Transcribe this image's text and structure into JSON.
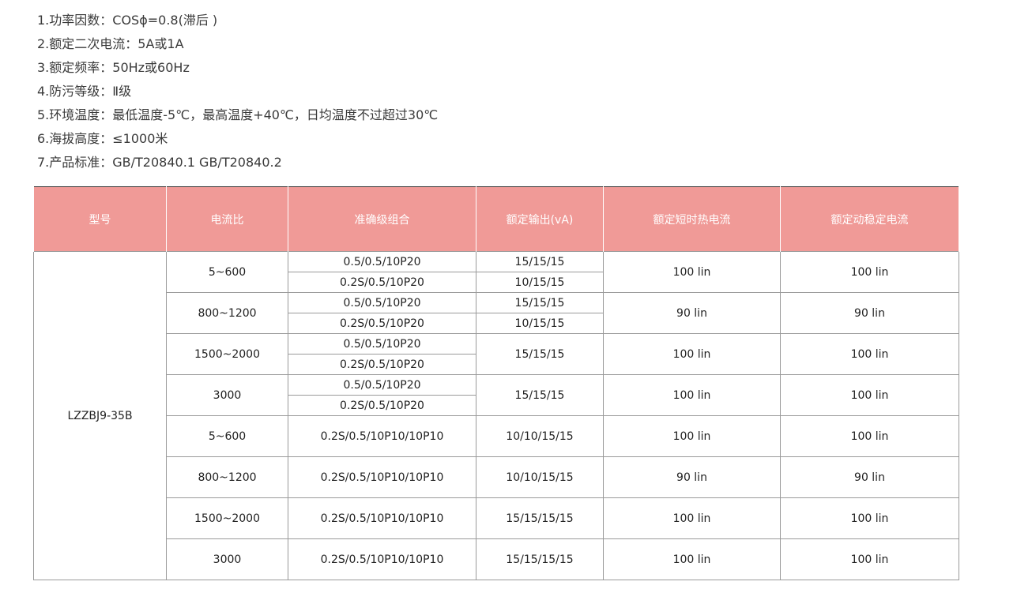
{
  "specs": [
    "1.功率因数：COSϕ=0.8(滞后 )",
    "2.额定二次电流：5A或1A",
    "3.额定频率：50Hz或60Hz",
    "4.防污等级：Ⅱ级",
    "5.环境温度：最低温度-5℃，最高温度+40℃，日均温度不过超过30℃",
    "6.海拔高度：≤1000米",
    "7.产品标准：GB/T20840.1   GB/T20840.2"
  ],
  "table": {
    "header_color": "#f09a97",
    "headers": [
      "型号",
      "电流比",
      "准确级组合",
      "额定输出(vA)",
      "额定短时热电流",
      "额定动稳定电流"
    ],
    "model": "LZZBJ9-35B",
    "groups": [
      {
        "ratio": "5~600",
        "accuracy": [
          "0.5/0.5/10P20",
          "0.2S/0.5/10P20"
        ],
        "output": [
          "15/15/15",
          "10/15/15"
        ],
        "thermal": "100 lin",
        "dynamic": "100 lin"
      },
      {
        "ratio": "800~1200",
        "accuracy": [
          "0.5/0.5/10P20",
          "0.2S/0.5/10P20"
        ],
        "output": [
          "15/15/15",
          "10/15/15"
        ],
        "thermal": "90 lin",
        "dynamic": "90 lin"
      },
      {
        "ratio": "1500~2000",
        "accuracy": [
          "0.5/0.5/10P20",
          "0.2S/0.5/10P20"
        ],
        "output": [
          "15/15/15"
        ],
        "thermal": "100 lin",
        "dynamic": "100 lin"
      },
      {
        "ratio": "3000",
        "accuracy": [
          "0.5/0.5/10P20",
          "0.2S/0.5/10P20"
        ],
        "output": [
          "15/15/15"
        ],
        "thermal": "100 lin",
        "dynamic": "100 lin"
      },
      {
        "ratio": "5~600",
        "accuracy": [
          "0.2S/0.5/10P10/10P10"
        ],
        "output": [
          "10/10/15/15"
        ],
        "thermal": "100 lin",
        "dynamic": "100 lin"
      },
      {
        "ratio": "800~1200",
        "accuracy": [
          "0.2S/0.5/10P10/10P10"
        ],
        "output": [
          "10/10/15/15"
        ],
        "thermal": "90 lin",
        "dynamic": "90 lin"
      },
      {
        "ratio": "1500~2000",
        "accuracy": [
          "0.2S/0.5/10P10/10P10"
        ],
        "output": [
          "15/15/15/15"
        ],
        "thermal": "100 lin",
        "dynamic": "100 lin"
      },
      {
        "ratio": "3000",
        "accuracy": [
          "0.2S/0.5/10P10/10P10"
        ],
        "output": [
          "15/15/15/15"
        ],
        "thermal": "100 lin",
        "dynamic": "100 lin"
      }
    ]
  }
}
